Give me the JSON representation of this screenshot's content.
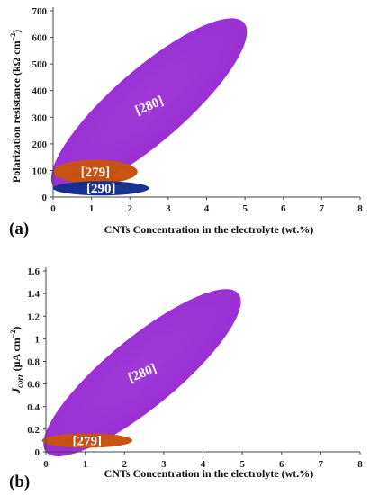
{
  "chart_data": [
    {
      "type": "scatter",
      "panel_label": "(a)",
      "xlabel": "CNTs Concentration in the electrolyte (wt.%)",
      "ylabel": "Polarization resistance (kΩ cm⁻²)",
      "xlim": [
        0,
        8
      ],
      "ylim": [
        0,
        700
      ],
      "xticks": [
        "0",
        "1",
        "2",
        "3",
        "4",
        "5",
        "6",
        "7",
        "8"
      ],
      "yticks": [
        "0",
        "100",
        "200",
        "300",
        "400",
        "500",
        "600",
        "700"
      ],
      "series": [
        {
          "name": "[280]",
          "color": "#9a2fd4",
          "x_range": [
            0.05,
            5.0
          ],
          "y_range": [
            40,
            660
          ],
          "center": [
            2.5,
            345
          ]
        },
        {
          "name": "[279]",
          "color": "#c8520e",
          "x_range": [
            0,
            2.2
          ],
          "y_range": [
            50,
            140
          ],
          "center": [
            1.1,
            95
          ]
        },
        {
          "name": "[290]",
          "color": "#142f8e",
          "x_range": [
            0,
            2.5
          ],
          "y_range": [
            18,
            48
          ],
          "center": [
            1.25,
            33
          ]
        }
      ]
    },
    {
      "type": "scatter",
      "panel_label": "(b)",
      "xlabel": "CNTs Concentration in the electrolyte (wt.%)",
      "ylabel": "J_corr (μA cm⁻²)",
      "xlim": [
        0,
        8
      ],
      "ylim": [
        0,
        1.6
      ],
      "xticks": [
        "0",
        "1",
        "2",
        "3",
        "4",
        "5",
        "6",
        "7",
        "8"
      ],
      "yticks": [
        "0",
        "0.2",
        "0.4",
        "0.6",
        "0.8",
        "1",
        "1.2",
        "1.4",
        "1.6"
      ],
      "series": [
        {
          "name": "[280]",
          "color": "#9a2fd4",
          "x_range": [
            0,
            4.9
          ],
          "y_range": [
            0,
            1.4
          ],
          "center": [
            2.45,
            0.7
          ]
        },
        {
          "name": "[279]",
          "color": "#c8520e",
          "x_range": [
            0,
            2.3
          ],
          "y_range": [
            0.04,
            0.16
          ],
          "center": [
            1.05,
            0.1
          ]
        }
      ]
    }
  ]
}
